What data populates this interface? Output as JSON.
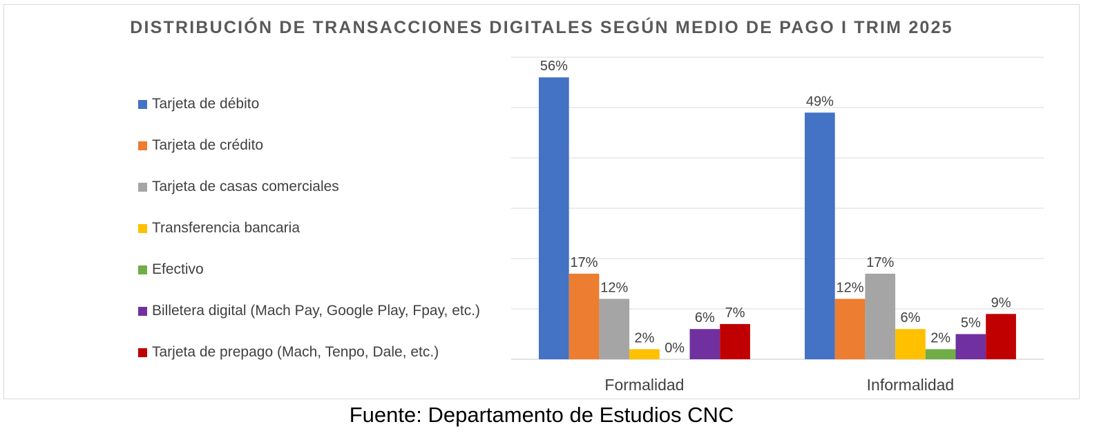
{
  "chart_data": {
    "type": "bar",
    "title": "DISTRIBUCIÓN DE TRANSACCIONES DIGITALES SEGÚN MEDIO DE PAGO I TRIM 2025",
    "categories": [
      "Formalidad",
      "Informalidad"
    ],
    "series": [
      {
        "name": "Tarjeta de débito",
        "color": "#4472C4",
        "values": [
          56,
          49
        ],
        "labels": [
          "56%",
          "49%"
        ]
      },
      {
        "name": "Tarjeta de crédito",
        "color": "#ED7D31",
        "values": [
          17,
          12
        ],
        "labels": [
          "17%",
          "12%"
        ]
      },
      {
        "name": "Tarjeta de casas comerciales",
        "color": "#A5A5A5",
        "values": [
          12,
          17
        ],
        "labels": [
          "12%",
          "17%"
        ]
      },
      {
        "name": "Transferencia bancaria",
        "color": "#FFC000",
        "values": [
          2,
          6
        ],
        "labels": [
          "2%",
          "6%"
        ]
      },
      {
        "name": "Efectivo",
        "color": "#70AD47",
        "values": [
          0,
          2
        ],
        "labels": [
          "0%",
          "2%"
        ]
      },
      {
        "name": "Billetera digital (Mach Pay, Google Play, Fpay, etc.)",
        "color": "#7030A0",
        "values": [
          6,
          5
        ],
        "labels": [
          "6%",
          "5%"
        ]
      },
      {
        "name": "Tarjeta de prepago (Mach, Tenpo, Dale, etc.)",
        "color": "#C00000",
        "values": [
          7,
          9
        ],
        "labels": [
          "7%",
          "9%"
        ]
      }
    ],
    "ylim": [
      0,
      60
    ],
    "grid": true,
    "legend_position": "left"
  },
  "source_note": "Fuente: Departamento de Estudios CNC"
}
